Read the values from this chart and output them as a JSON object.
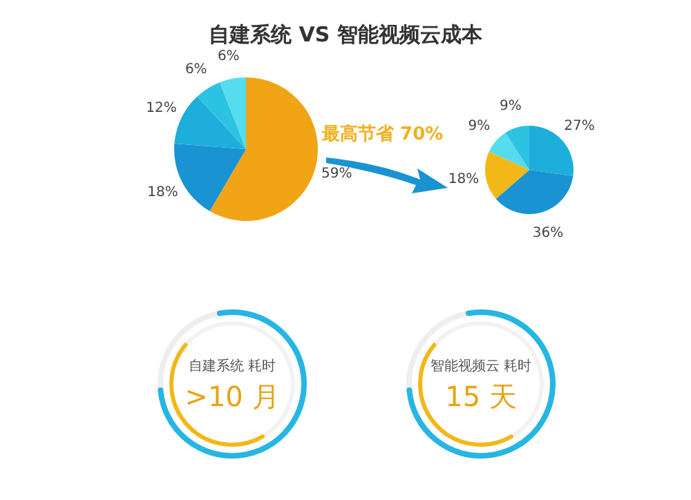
{
  "chart_data": [
    {
      "type": "pie",
      "title": "自建系统 VS 智能视频云成本",
      "annotations": [
        "最高节省 70%"
      ],
      "categories": [
        null,
        null,
        null,
        null,
        null
      ],
      "values": [
        59,
        18,
        12,
        6,
        6
      ],
      "value_labels": [
        "59%",
        "18%",
        "12%",
        "6%",
        "6%"
      ],
      "colors": [
        "#f0a416",
        "#1a93d2",
        "#1eaedc",
        "#2cc3e2",
        "#55dcef"
      ]
    },
    {
      "type": "pie",
      "categories": [
        null,
        null,
        null,
        null,
        null
      ],
      "values": [
        27,
        36,
        18,
        9,
        9
      ],
      "value_labels": [
        "27%",
        "36%",
        "18%",
        "9%",
        "9%"
      ],
      "colors": [
        "#1eaedc",
        "#1a93d2",
        "#f2b818",
        "#55dcef",
        "#2cc3e2"
      ]
    },
    {
      "type": "other",
      "annotations": [
        "自建系统 耗时",
        ">10 月",
        "智能视频云 耗时",
        "15 天"
      ]
    }
  ]
}
